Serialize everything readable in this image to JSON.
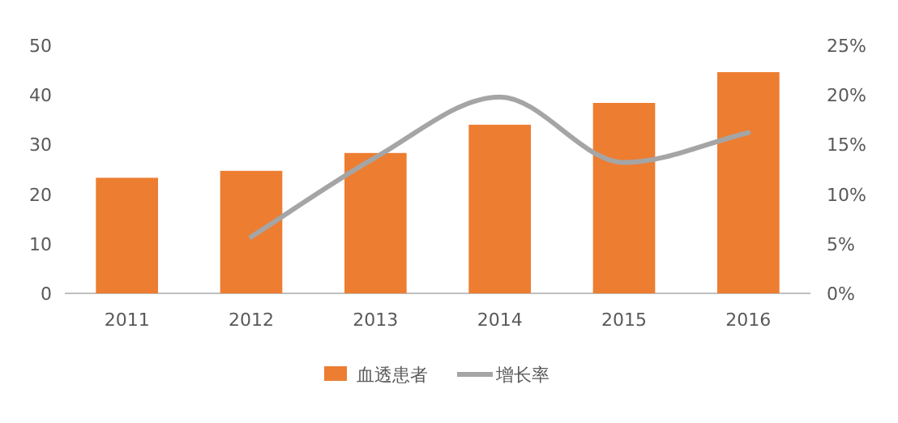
{
  "chart_data": {
    "type": "bar",
    "categories": [
      "2011",
      "2012",
      "2013",
      "2014",
      "2015",
      "2016"
    ],
    "series": [
      {
        "name": "血透患者",
        "color": "#ed7d31",
        "values": [
          23.3,
          24.7,
          28.3,
          34.0,
          38.4,
          44.6
        ]
      },
      {
        "name": "增长率",
        "type": "line",
        "axis": "y2",
        "color": "#a5a5a5",
        "values": [
          null,
          5.7,
          13.7,
          19.8,
          13.2,
          16.2
        ]
      }
    ],
    "ylim": [
      0,
      50
    ],
    "yticks": [
      0,
      10,
      20,
      30,
      40,
      50
    ],
    "y2lim": [
      0,
      25
    ],
    "y2ticks": [
      {
        "value": 0,
        "label": "0%"
      },
      {
        "value": 5,
        "label": "5%"
      },
      {
        "value": 10,
        "label": "10%"
      },
      {
        "value": 15,
        "label": "15%"
      },
      {
        "value": 20,
        "label": "20%"
      },
      {
        "value": 25,
        "label": "25%"
      }
    ],
    "legend": "bottom",
    "marker": "none",
    "line_style": "solid"
  }
}
